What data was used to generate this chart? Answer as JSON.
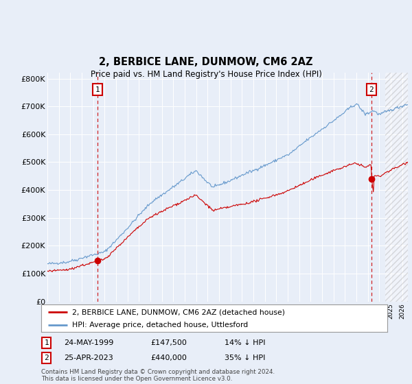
{
  "title": "2, BERBICE LANE, DUNMOW, CM6 2AZ",
  "subtitle": "Price paid vs. HM Land Registry's House Price Index (HPI)",
  "ylim": [
    0,
    820000
  ],
  "yticks": [
    0,
    100000,
    200000,
    300000,
    400000,
    500000,
    600000,
    700000,
    800000
  ],
  "ytick_labels": [
    "£0",
    "£100K",
    "£200K",
    "£300K",
    "£400K",
    "£500K",
    "£600K",
    "£700K",
    "£800K"
  ],
  "xlim_start": 1995.0,
  "xlim_end": 2026.5,
  "hpi_color": "#6699cc",
  "price_color": "#cc0000",
  "sale1_x": 1999.389,
  "sale1_y": 147500,
  "sale1_label": "1",
  "sale1_date": "24-MAY-1999",
  "sale1_price": "£147,500",
  "sale1_hpi": "14% ↓ HPI",
  "sale2_x": 2023.315,
  "sale2_y": 440000,
  "sale2_label": "2",
  "sale2_date": "25-APR-2023",
  "sale2_price": "£440,000",
  "sale2_hpi": "35% ↓ HPI",
  "legend_line1": "2, BERBICE LANE, DUNMOW, CM6 2AZ (detached house)",
  "legend_line2": "HPI: Average price, detached house, Uttlesford",
  "footnote": "Contains HM Land Registry data © Crown copyright and database right 2024.\nThis data is licensed under the Open Government Licence v3.0.",
  "background_color": "#e8eef8",
  "plot_bg_color": "#e8eef8",
  "hatch_start": 2024.5
}
